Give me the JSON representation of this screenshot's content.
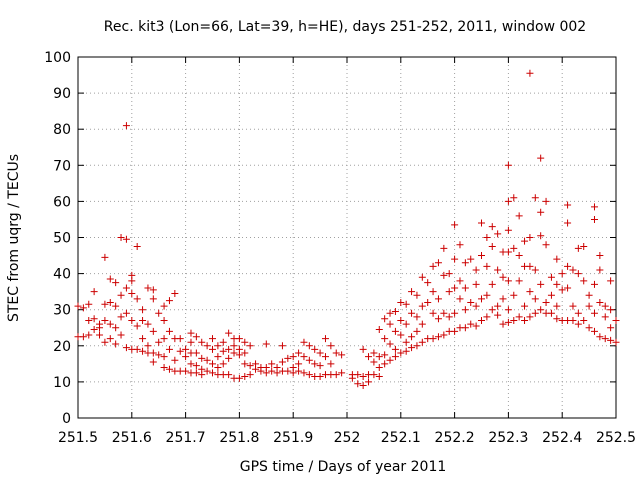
{
  "chart_data": {
    "type": "scatter",
    "title": "Rec. kit3 (Lon=66, Lat=39, h=HE), days 251-252, 2011, window 002",
    "xlabel": "GPS time / Days of year 2011",
    "ylabel": "STEC from uqrg / TECUs",
    "xlim": [
      251.5,
      252.5
    ],
    "ylim": [
      0,
      100
    ],
    "x_ticks": [
      "251.5",
      "251.6",
      "251.7",
      "251.8",
      "251.9",
      "252",
      "252.1",
      "252.2",
      "252.3",
      "252.4",
      "252.5"
    ],
    "y_ticks": [
      "0",
      "10",
      "20",
      "30",
      "40",
      "50",
      "60",
      "70",
      "80",
      "90",
      "100"
    ],
    "grid": true,
    "marker": "+",
    "color": "#cc0000",
    "points": [
      [
        251.5,
        31
      ],
      [
        251.5,
        22.5
      ],
      [
        251.51,
        30.5
      ],
      [
        251.51,
        22.5
      ],
      [
        251.52,
        31.5
      ],
      [
        251.52,
        27
      ],
      [
        251.52,
        23
      ],
      [
        251.53,
        35
      ],
      [
        251.53,
        27.5
      ],
      [
        251.53,
        24.5
      ],
      [
        251.54,
        26
      ],
      [
        251.54,
        25
      ],
      [
        251.54,
        23
      ],
      [
        251.55,
        44.5
      ],
      [
        251.55,
        31.5
      ],
      [
        251.55,
        27
      ],
      [
        251.55,
        21
      ],
      [
        251.56,
        38.5
      ],
      [
        251.56,
        32
      ],
      [
        251.56,
        26
      ],
      [
        251.56,
        22
      ],
      [
        251.57,
        37.5
      ],
      [
        251.57,
        31
      ],
      [
        251.57,
        25
      ],
      [
        251.57,
        20.5
      ],
      [
        251.58,
        50
      ],
      [
        251.58,
        34
      ],
      [
        251.58,
        28
      ],
      [
        251.58,
        23
      ],
      [
        251.59,
        81
      ],
      [
        251.59,
        49.5
      ],
      [
        251.59,
        36
      ],
      [
        251.59,
        29
      ],
      [
        251.59,
        19.5
      ],
      [
        251.6,
        39.5
      ],
      [
        251.6,
        38
      ],
      [
        251.6,
        34.5
      ],
      [
        251.6,
        27
      ],
      [
        251.6,
        19
      ],
      [
        251.61,
        47.5
      ],
      [
        251.61,
        33
      ],
      [
        251.61,
        25.5
      ],
      [
        251.61,
        19
      ],
      [
        251.62,
        30
      ],
      [
        251.62,
        27
      ],
      [
        251.62,
        22
      ],
      [
        251.62,
        18.5
      ],
      [
        251.63,
        36
      ],
      [
        251.63,
        26
      ],
      [
        251.63,
        20
      ],
      [
        251.63,
        18
      ],
      [
        251.64,
        35.5
      ],
      [
        251.64,
        33
      ],
      [
        251.64,
        24
      ],
      [
        251.64,
        18
      ],
      [
        251.64,
        15.5
      ],
      [
        251.65,
        29
      ],
      [
        251.65,
        21
      ],
      [
        251.65,
        17.5
      ],
      [
        251.66,
        31
      ],
      [
        251.66,
        27
      ],
      [
        251.66,
        22
      ],
      [
        251.66,
        17
      ],
      [
        251.66,
        14
      ],
      [
        251.67,
        32.5
      ],
      [
        251.67,
        24
      ],
      [
        251.67,
        19
      ],
      [
        251.67,
        13.5
      ],
      [
        251.68,
        34.5
      ],
      [
        251.68,
        22
      ],
      [
        251.68,
        16
      ],
      [
        251.68,
        13
      ],
      [
        251.69,
        22
      ],
      [
        251.69,
        18.5
      ],
      [
        251.69,
        13
      ],
      [
        251.7,
        19
      ],
      [
        251.7,
        17
      ],
      [
        251.7,
        13
      ],
      [
        251.71,
        23.5
      ],
      [
        251.71,
        21
      ],
      [
        251.71,
        18
      ],
      [
        251.71,
        15
      ],
      [
        251.71,
        12.5
      ],
      [
        251.72,
        22.5
      ],
      [
        251.72,
        18
      ],
      [
        251.72,
        14.5
      ],
      [
        251.72,
        12.5
      ],
      [
        251.73,
        21
      ],
      [
        251.73,
        16.5
      ],
      [
        251.73,
        13.5
      ],
      [
        251.73,
        12
      ],
      [
        251.74,
        20
      ],
      [
        251.74,
        16
      ],
      [
        251.74,
        13
      ],
      [
        251.75,
        22
      ],
      [
        251.75,
        19
      ],
      [
        251.75,
        15
      ],
      [
        251.75,
        12.5
      ],
      [
        251.76,
        20
      ],
      [
        251.76,
        17
      ],
      [
        251.76,
        14
      ],
      [
        251.76,
        12
      ],
      [
        251.77,
        21
      ],
      [
        251.77,
        18.5
      ],
      [
        251.77,
        15
      ],
      [
        251.77,
        12
      ],
      [
        251.78,
        23.5
      ],
      [
        251.78,
        19
      ],
      [
        251.78,
        16.5
      ],
      [
        251.78,
        12
      ],
      [
        251.79,
        22
      ],
      [
        251.79,
        20
      ],
      [
        251.79,
        18
      ],
      [
        251.79,
        11
      ],
      [
        251.8,
        22
      ],
      [
        251.8,
        19
      ],
      [
        251.8,
        17.5
      ],
      [
        251.8,
        11
      ],
      [
        251.81,
        21
      ],
      [
        251.81,
        18
      ],
      [
        251.81,
        15
      ],
      [
        251.81,
        11.5
      ],
      [
        251.82,
        20
      ],
      [
        251.82,
        14.5
      ],
      [
        251.82,
        12
      ],
      [
        251.83,
        15
      ],
      [
        251.83,
        13.5
      ],
      [
        251.84,
        14
      ],
      [
        251.84,
        13
      ],
      [
        251.85,
        20.5
      ],
      [
        251.85,
        14
      ],
      [
        251.85,
        12.5
      ],
      [
        251.86,
        15
      ],
      [
        251.86,
        13
      ],
      [
        251.87,
        14
      ],
      [
        251.87,
        12.5
      ],
      [
        251.88,
        20
      ],
      [
        251.88,
        15.5
      ],
      [
        251.88,
        13
      ],
      [
        251.89,
        16.5
      ],
      [
        251.89,
        13
      ],
      [
        251.9,
        17
      ],
      [
        251.9,
        14
      ],
      [
        251.9,
        12.5
      ],
      [
        251.91,
        18
      ],
      [
        251.91,
        15
      ],
      [
        251.91,
        13
      ],
      [
        251.92,
        21
      ],
      [
        251.92,
        17
      ],
      [
        251.92,
        12.5
      ],
      [
        251.93,
        20
      ],
      [
        251.93,
        16
      ],
      [
        251.93,
        12
      ],
      [
        251.94,
        19
      ],
      [
        251.94,
        15
      ],
      [
        251.94,
        11.5
      ],
      [
        251.95,
        18
      ],
      [
        251.95,
        14.5
      ],
      [
        251.95,
        11.5
      ],
      [
        251.96,
        22
      ],
      [
        251.96,
        17
      ],
      [
        251.96,
        12
      ],
      [
        251.97,
        20
      ],
      [
        251.97,
        15
      ],
      [
        251.97,
        12
      ],
      [
        251.98,
        18
      ],
      [
        251.98,
        12
      ],
      [
        251.99,
        17.5
      ],
      [
        251.99,
        12.5
      ],
      [
        252.01,
        12
      ],
      [
        252.01,
        11
      ],
      [
        252.02,
        12
      ],
      [
        252.02,
        9.5
      ],
      [
        252.03,
        19
      ],
      [
        252.03,
        11.5
      ],
      [
        252.03,
        9
      ],
      [
        252.04,
        17
      ],
      [
        252.04,
        12
      ],
      [
        252.04,
        10
      ],
      [
        252.05,
        18
      ],
      [
        252.05,
        15.5
      ],
      [
        252.05,
        12
      ],
      [
        252.06,
        24.5
      ],
      [
        252.06,
        17
      ],
      [
        252.06,
        14
      ],
      [
        252.06,
        11.5
      ],
      [
        252.07,
        27.5
      ],
      [
        252.07,
        22
      ],
      [
        252.07,
        17.5
      ],
      [
        252.07,
        15
      ],
      [
        252.08,
        29
      ],
      [
        252.08,
        26
      ],
      [
        252.08,
        20.5
      ],
      [
        252.08,
        16
      ],
      [
        252.09,
        29.5
      ],
      [
        252.09,
        24
      ],
      [
        252.09,
        19
      ],
      [
        252.09,
        17
      ],
      [
        252.1,
        32
      ],
      [
        252.1,
        27
      ],
      [
        252.1,
        23
      ],
      [
        252.1,
        18
      ],
      [
        252.11,
        31.5
      ],
      [
        252.11,
        26
      ],
      [
        252.11,
        21
      ],
      [
        252.11,
        18.5
      ],
      [
        252.12,
        35
      ],
      [
        252.12,
        29
      ],
      [
        252.12,
        22.5
      ],
      [
        252.12,
        19.5
      ],
      [
        252.13,
        34
      ],
      [
        252.13,
        28
      ],
      [
        252.13,
        24
      ],
      [
        252.13,
        20
      ],
      [
        252.14,
        39
      ],
      [
        252.14,
        31
      ],
      [
        252.14,
        26
      ],
      [
        252.14,
        21
      ],
      [
        252.15,
        37.5
      ],
      [
        252.15,
        32
      ],
      [
        252.15,
        22
      ],
      [
        252.16,
        42
      ],
      [
        252.16,
        35
      ],
      [
        252.16,
        29
      ],
      [
        252.16,
        22
      ],
      [
        252.17,
        43
      ],
      [
        252.17,
        33
      ],
      [
        252.17,
        27.5
      ],
      [
        252.17,
        22.5
      ],
      [
        252.18,
        47
      ],
      [
        252.18,
        39.5
      ],
      [
        252.18,
        29
      ],
      [
        252.18,
        23
      ],
      [
        252.19,
        40
      ],
      [
        252.19,
        35
      ],
      [
        252.19,
        28
      ],
      [
        252.19,
        24
      ],
      [
        252.2,
        53.5
      ],
      [
        252.2,
        44
      ],
      [
        252.2,
        36
      ],
      [
        252.2,
        29
      ],
      [
        252.2,
        24
      ],
      [
        252.21,
        48
      ],
      [
        252.21,
        38
      ],
      [
        252.21,
        33
      ],
      [
        252.21,
        25
      ],
      [
        252.22,
        43
      ],
      [
        252.22,
        36
      ],
      [
        252.22,
        30
      ],
      [
        252.22,
        25
      ],
      [
        252.23,
        44
      ],
      [
        252.23,
        32
      ],
      [
        252.23,
        26
      ],
      [
        252.24,
        41
      ],
      [
        252.24,
        37
      ],
      [
        252.24,
        31
      ],
      [
        252.24,
        25.5
      ],
      [
        252.25,
        54
      ],
      [
        252.25,
        45
      ],
      [
        252.25,
        33
      ],
      [
        252.25,
        27
      ],
      [
        252.26,
        50
      ],
      [
        252.26,
        42
      ],
      [
        252.26,
        34
      ],
      [
        252.26,
        28
      ],
      [
        252.27,
        53
      ],
      [
        252.27,
        47.5
      ],
      [
        252.27,
        37
      ],
      [
        252.27,
        30
      ],
      [
        252.28,
        51
      ],
      [
        252.28,
        41
      ],
      [
        252.28,
        31
      ],
      [
        252.28,
        28.5
      ],
      [
        252.29,
        46
      ],
      [
        252.29,
        39
      ],
      [
        252.29,
        33
      ],
      [
        252.29,
        26
      ],
      [
        252.3,
        70
      ],
      [
        252.3,
        60
      ],
      [
        252.3,
        52
      ],
      [
        252.3,
        46
      ],
      [
        252.3,
        38
      ],
      [
        252.3,
        30
      ],
      [
        252.3,
        26.5
      ],
      [
        252.31,
        61
      ],
      [
        252.31,
        47
      ],
      [
        252.31,
        34
      ],
      [
        252.31,
        27
      ],
      [
        252.32,
        56
      ],
      [
        252.32,
        45
      ],
      [
        252.32,
        38
      ],
      [
        252.32,
        28
      ],
      [
        252.33,
        49
      ],
      [
        252.33,
        42
      ],
      [
        252.33,
        31
      ],
      [
        252.33,
        27
      ],
      [
        252.34,
        95.5
      ],
      [
        252.34,
        50
      ],
      [
        252.34,
        42
      ],
      [
        252.34,
        35
      ],
      [
        252.34,
        28
      ],
      [
        252.35,
        61
      ],
      [
        252.35,
        41
      ],
      [
        252.35,
        33
      ],
      [
        252.35,
        29
      ],
      [
        252.36,
        72
      ],
      [
        252.36,
        57
      ],
      [
        252.36,
        50.5
      ],
      [
        252.36,
        37
      ],
      [
        252.36,
        30
      ],
      [
        252.37,
        60
      ],
      [
        252.37,
        48
      ],
      [
        252.37,
        32
      ],
      [
        252.37,
        29
      ],
      [
        252.38,
        39
      ],
      [
        252.38,
        34
      ],
      [
        252.38,
        29
      ],
      [
        252.39,
        44
      ],
      [
        252.39,
        37
      ],
      [
        252.39,
        31
      ],
      [
        252.39,
        27.5
      ],
      [
        252.4,
        40
      ],
      [
        252.4,
        35.5
      ],
      [
        252.4,
        27
      ],
      [
        252.41,
        59
      ],
      [
        252.41,
        54
      ],
      [
        252.41,
        42
      ],
      [
        252.41,
        36
      ],
      [
        252.41,
        27
      ],
      [
        252.42,
        41
      ],
      [
        252.42,
        31
      ],
      [
        252.42,
        27
      ],
      [
        252.43,
        47
      ],
      [
        252.43,
        40
      ],
      [
        252.43,
        29
      ],
      [
        252.43,
        26
      ],
      [
        252.44,
        47.5
      ],
      [
        252.44,
        38
      ],
      [
        252.44,
        27
      ],
      [
        252.45,
        34
      ],
      [
        252.45,
        31
      ],
      [
        252.45,
        25
      ],
      [
        252.46,
        58.5
      ],
      [
        252.46,
        55
      ],
      [
        252.46,
        37
      ],
      [
        252.46,
        29
      ],
      [
        252.46,
        24
      ],
      [
        252.47,
        45
      ],
      [
        252.47,
        41
      ],
      [
        252.47,
        32
      ],
      [
        252.47,
        22.5
      ],
      [
        252.48,
        31
      ],
      [
        252.48,
        28
      ],
      [
        252.48,
        22
      ],
      [
        252.49,
        38
      ],
      [
        252.49,
        30
      ],
      [
        252.49,
        25
      ],
      [
        252.49,
        21.5
      ],
      [
        252.5,
        27
      ],
      [
        252.5,
        21
      ]
    ]
  }
}
